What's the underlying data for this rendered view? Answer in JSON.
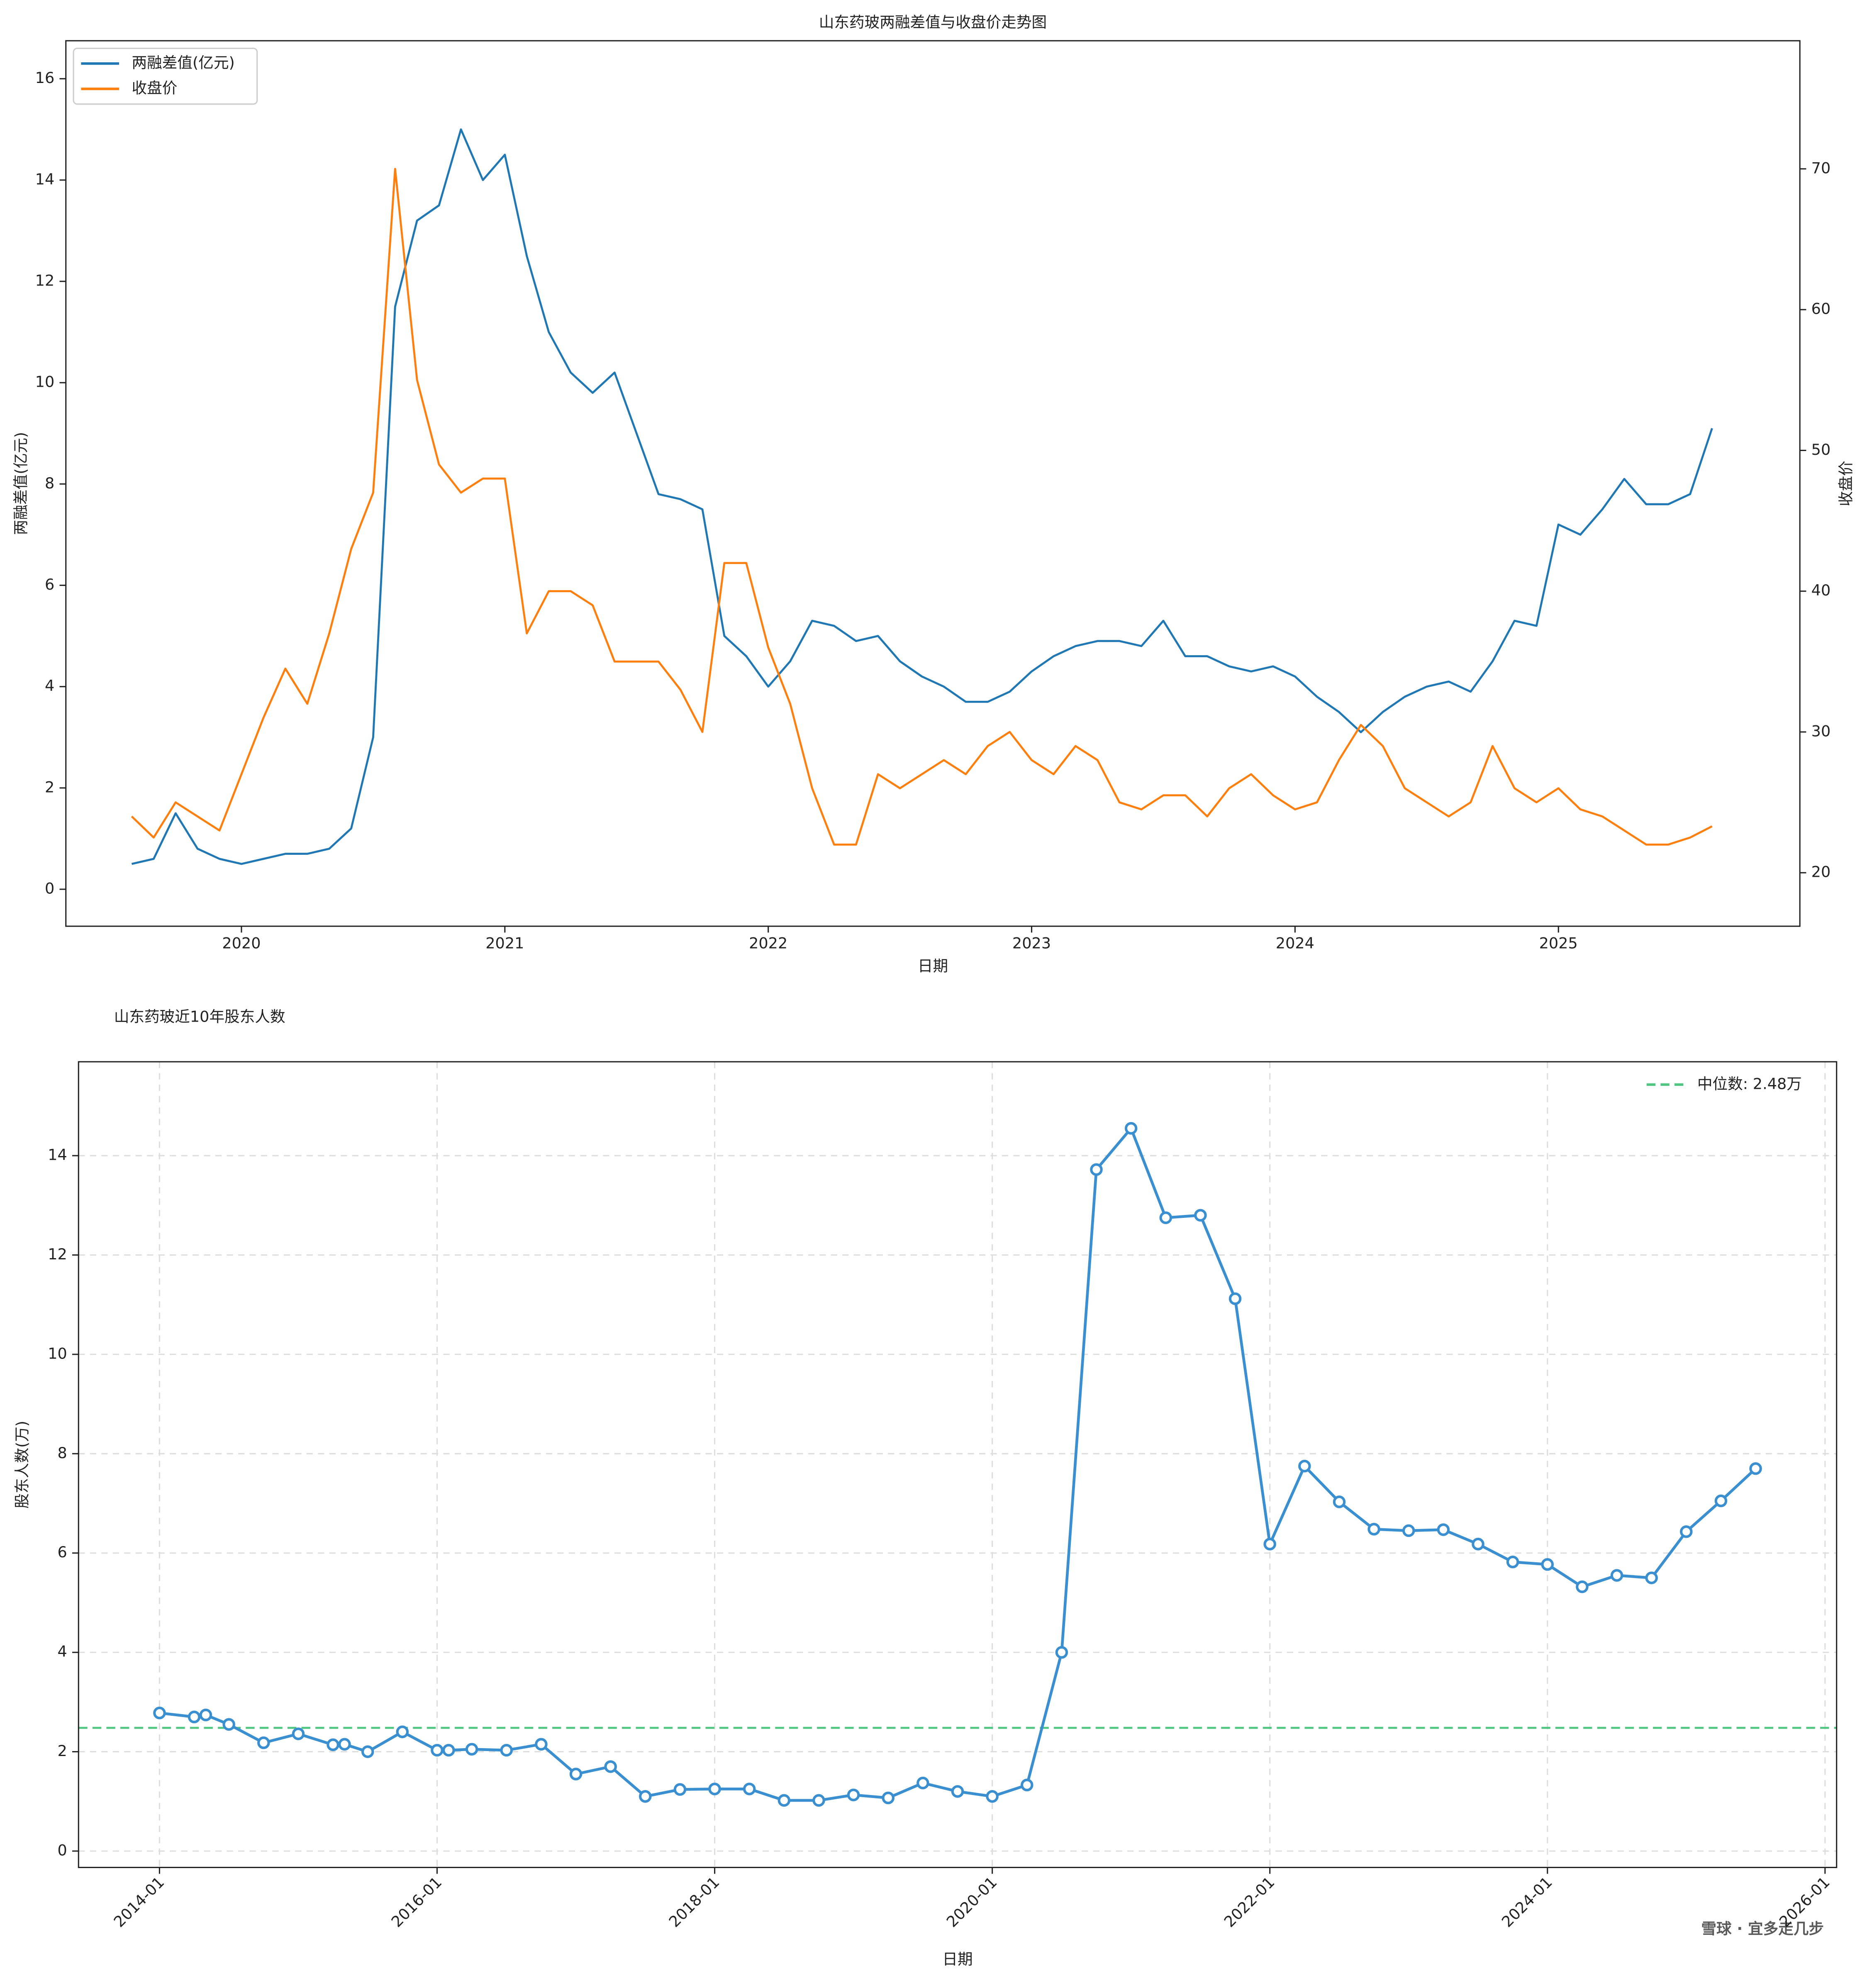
{
  "chart_data": [
    {
      "type": "line",
      "title": "山东药玻两融差值与收盘价走势图",
      "xlabel": "日期",
      "ylabel": "两融差值(亿元)",
      "y2label": "收盘价",
      "x": [
        "2019-08",
        "2019-09",
        "2019-10",
        "2019-11",
        "2019-12",
        "2020-01",
        "2020-02",
        "2020-03",
        "2020-04",
        "2020-05",
        "2020-06",
        "2020-07",
        "2020-08",
        "2020-09",
        "2020-10",
        "2020-11",
        "2020-12",
        "2021-01",
        "2021-02",
        "2021-03",
        "2021-04",
        "2021-05",
        "2021-06",
        "2021-07",
        "2021-08",
        "2021-09",
        "2021-10",
        "2021-11",
        "2021-12",
        "2022-01",
        "2022-02",
        "2022-03",
        "2022-04",
        "2022-05",
        "2022-06",
        "2022-07",
        "2022-08",
        "2022-09",
        "2022-10",
        "2022-11",
        "2022-12",
        "2023-01",
        "2023-02",
        "2023-03",
        "2023-04",
        "2023-05",
        "2023-06",
        "2023-07",
        "2023-08",
        "2023-09",
        "2023-10",
        "2023-11",
        "2023-12",
        "2024-01",
        "2024-02",
        "2024-03",
        "2024-04",
        "2024-05",
        "2024-06",
        "2024-07",
        "2024-08",
        "2024-09",
        "2024-10",
        "2024-11",
        "2024-12",
        "2025-01",
        "2025-02",
        "2025-03",
        "2025-04",
        "2025-05",
        "2025-06",
        "2025-07",
        "2025-08"
      ],
      "series": [
        {
          "name": "两融差值(亿元)",
          "color": "#1f77b4",
          "axis": "y",
          "values": [
            0.5,
            0.6,
            1.5,
            0.8,
            0.6,
            0.5,
            0.6,
            0.7,
            0.7,
            0.8,
            1.2,
            3.0,
            11.5,
            13.2,
            13.5,
            15.0,
            14.0,
            14.5,
            12.5,
            11.0,
            10.2,
            9.8,
            10.2,
            9.0,
            7.8,
            7.7,
            7.5,
            5.0,
            4.6,
            4.0,
            4.5,
            5.3,
            5.2,
            4.9,
            5.0,
            4.5,
            4.2,
            4.0,
            3.7,
            3.7,
            3.9,
            4.3,
            4.6,
            4.8,
            4.9,
            4.9,
            4.8,
            5.3,
            4.6,
            4.6,
            4.4,
            4.3,
            4.4,
            4.2,
            3.8,
            3.5,
            3.1,
            3.5,
            3.8,
            4.0,
            4.1,
            3.9,
            4.5,
            5.3,
            5.2,
            7.2,
            7.0,
            7.5,
            8.1,
            7.6,
            7.6,
            7.8,
            9.1
          ]
        },
        {
          "name": "收盘价",
          "color": "#ff7f0e",
          "axis": "y2",
          "values": [
            24,
            22.5,
            25,
            24,
            23,
            27,
            31,
            34.5,
            32,
            37,
            43,
            47,
            70,
            55,
            49,
            47,
            48,
            48,
            37,
            40,
            40,
            39,
            35,
            35,
            35,
            33,
            30,
            42,
            42,
            36,
            32,
            26,
            22,
            22,
            27,
            26,
            27,
            28,
            27,
            29,
            30,
            28,
            27,
            29,
            28,
            25,
            24.5,
            25.5,
            25.5,
            24,
            26,
            27,
            25.5,
            24.5,
            25,
            28,
            30.5,
            29,
            26,
            25,
            24,
            25,
            29,
            26,
            25,
            26,
            24.5,
            24,
            23,
            22,
            22,
            22.5,
            23.3
          ]
        }
      ],
      "xlim": [
        "2019-05",
        "2025-12"
      ],
      "xticks": [
        2020,
        2021,
        2022,
        2023,
        2024,
        2025
      ],
      "ylim": [
        -0.73,
        16.75
      ],
      "yticks": [
        0,
        2,
        4,
        6,
        8,
        10,
        12,
        14,
        16
      ],
      "y2lim": [
        16.2,
        79.1
      ],
      "y2ticks": [
        20,
        30,
        40,
        50,
        60,
        70
      ],
      "grid": false,
      "legend": "upper left",
      "legend_frame": true
    },
    {
      "type": "line",
      "title": "山东药玻近10年股东人数",
      "xlabel": "日期",
      "ylabel": "股东人数(万)",
      "x": [
        "2014-01",
        "2014-04",
        "2014-05",
        "2014-07",
        "2014-10",
        "2015-01",
        "2015-04",
        "2015-05",
        "2015-07",
        "2015-10",
        "2016-01",
        "2016-02",
        "2016-04",
        "2016-07",
        "2016-10",
        "2017-01",
        "2017-04",
        "2017-07",
        "2017-10",
        "2018-01",
        "2018-04",
        "2018-07",
        "2018-10",
        "2019-01",
        "2019-04",
        "2019-07",
        "2019-10",
        "2020-01",
        "2020-04",
        "2020-07",
        "2020-10",
        "2021-01",
        "2021-04",
        "2021-07",
        "2021-10",
        "2022-01",
        "2022-04",
        "2022-07",
        "2022-10",
        "2023-01",
        "2023-04",
        "2023-07",
        "2023-10",
        "2024-01",
        "2024-04",
        "2024-07",
        "2024-10",
        "2025-01",
        "2025-04",
        "2025-07"
      ],
      "series": [
        {
          "color": "#3a8fd0",
          "axis": "y",
          "marker": true,
          "values": [
            2.78,
            2.7,
            2.74,
            2.55,
            2.18,
            2.36,
            2.14,
            2.15,
            2.0,
            2.4,
            2.03,
            2.03,
            2.05,
            2.03,
            2.15,
            1.55,
            1.7,
            1.1,
            1.24,
            1.25,
            1.25,
            1.02,
            1.02,
            1.13,
            1.07,
            1.37,
            1.2,
            1.1,
            1.33,
            4.0,
            13.72,
            14.55,
            12.75,
            12.8,
            11.12,
            6.18,
            7.75,
            7.03,
            6.48,
            6.45,
            6.47,
            6.18,
            5.82,
            5.77,
            5.32,
            5.55,
            5.5,
            6.43,
            7.05,
            7.7
          ]
        }
      ],
      "median": 2.48,
      "median_label": "中位数: 2.48万",
      "median_color": "#4fc67f",
      "xlim": [
        "2013-06",
        "2026-02"
      ],
      "xticks": [
        "2014-01",
        "2016-01",
        "2018-01",
        "2020-01",
        "2022-01",
        "2024-01",
        "2026-01"
      ],
      "ylim": [
        -0.33,
        15.89
      ],
      "yticks": [
        0,
        2,
        4,
        6,
        8,
        10,
        12,
        14
      ],
      "grid": true,
      "legend": "upper right",
      "legend_frame": false,
      "watermark": "雪球 · 宜多走几步"
    }
  ]
}
